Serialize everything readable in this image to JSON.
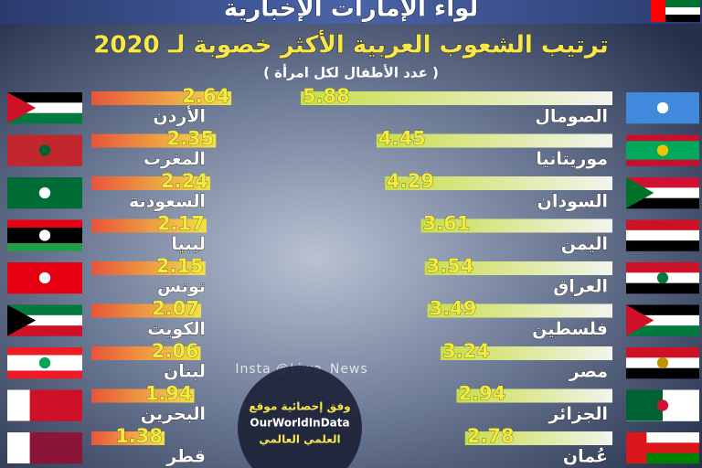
{
  "header": "لواء الإمارات الإخبارية",
  "chart_data": {
    "type": "bar",
    "title": "ترتيب الشعوب العربية الأكثر خصوبة لـ 2020",
    "subtitle": "( عدد الأطفال لكل امرأة )",
    "categories": [
      "الصومال",
      "موريتانيا",
      "السودان",
      "اليمن",
      "العراق",
      "فلسطين",
      "مصر",
      "الجزائر",
      "عُمان",
      "الأردن",
      "المغرب",
      "السعودية",
      "ليبيا",
      "تونس",
      "الكويت",
      "لبنان",
      "البحرين",
      "قطر"
    ],
    "values": [
      5.88,
      4.45,
      4.29,
      3.61,
      3.54,
      3.49,
      3.24,
      2.94,
      2.78,
      2.64,
      2.35,
      2.24,
      2.17,
      2.15,
      2.07,
      2.06,
      1.94,
      1.38
    ],
    "watermark": "Insta @Liwa_News",
    "source": [
      "وفق إحصائية موقع",
      "OurWorldInData",
      "العلمي العالمي"
    ]
  }
}
